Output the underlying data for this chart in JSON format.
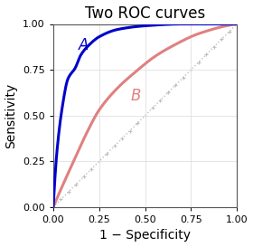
{
  "title": "Two ROC curves",
  "xlabel": "1 − Specificity",
  "ylabel": "Sensitivity",
  "xlim": [
    0.0,
    1.0
  ],
  "ylim": [
    0.0,
    1.0
  ],
  "xticks": [
    0.0,
    0.25,
    0.5,
    0.75,
    1.0
  ],
  "yticks": [
    0.0,
    0.25,
    0.5,
    0.75,
    1.0
  ],
  "color_A": "#0000cc",
  "color_B": "#e08080",
  "color_diag": "#c0c0c0",
  "label_A": "A",
  "label_B": "B",
  "lw_A": 2.2,
  "lw_B": 2.2,
  "background": "#ffffff",
  "title_fontsize": 12,
  "axis_label_fontsize": 10,
  "tick_fontsize": 8,
  "x_A": [
    0.0,
    0.02,
    0.05,
    0.08,
    0.12,
    0.15,
    0.2,
    0.25,
    0.35,
    0.5,
    0.7,
    1.0
  ],
  "y_A": [
    0.0,
    0.3,
    0.55,
    0.7,
    0.76,
    0.83,
    0.89,
    0.93,
    0.97,
    0.99,
    1.0,
    1.0
  ],
  "x_B": [
    0.0,
    0.03,
    0.07,
    0.12,
    0.18,
    0.25,
    0.35,
    0.45,
    0.55,
    0.65,
    0.8,
    1.0
  ],
  "y_B": [
    0.0,
    0.07,
    0.16,
    0.27,
    0.4,
    0.53,
    0.65,
    0.74,
    0.82,
    0.88,
    0.95,
    1.0
  ]
}
